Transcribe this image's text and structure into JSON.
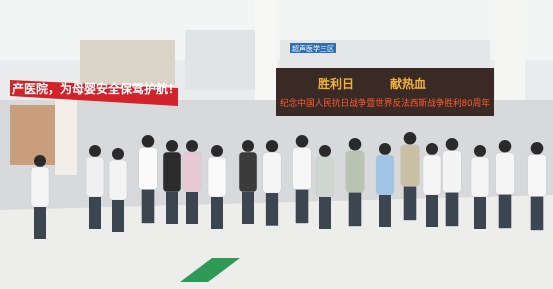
{
  "banner": {
    "text": "产医院，为母婴安全保驾护航！"
  },
  "led": {
    "title_left": "胜利日",
    "title_right": "献热血",
    "scroll": "纪念中国人民抗日战争暨世界反法西斯战争胜利80周年"
  },
  "signs": [
    "超声医学三区"
  ]
}
